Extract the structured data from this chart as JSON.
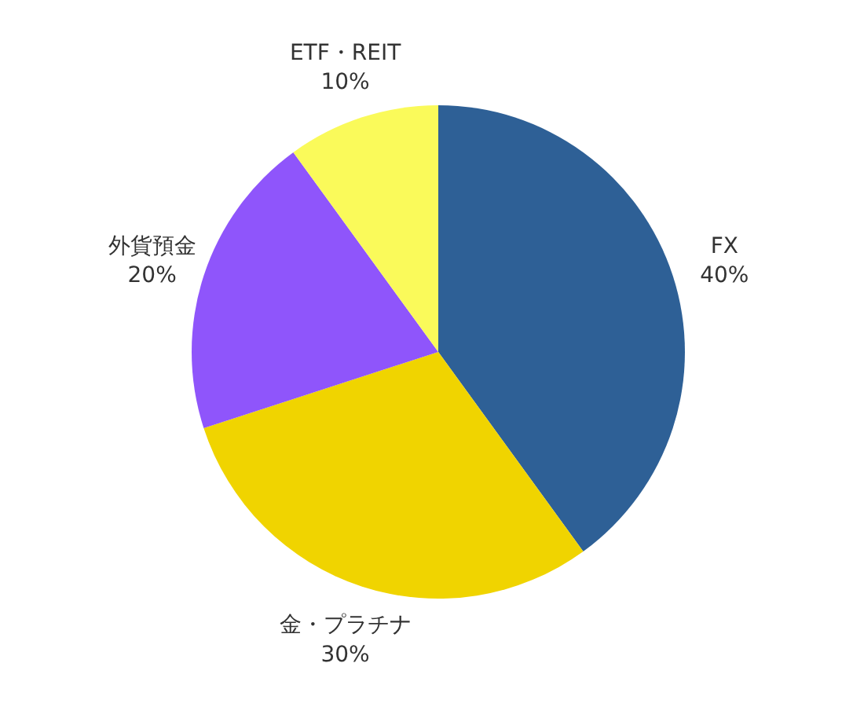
{
  "chart_data": {
    "type": "pie",
    "categories": [
      "FX",
      "金・プラチナ",
      "外貨預金",
      "ETF・REIT"
    ],
    "values": [
      40,
      30,
      20,
      10
    ],
    "colors": [
      "#2e6096",
      "#f0d400",
      "#8f55fb",
      "#fafa5a"
    ],
    "value_labels": [
      "40%",
      "30%",
      "20%",
      "10%"
    ]
  }
}
